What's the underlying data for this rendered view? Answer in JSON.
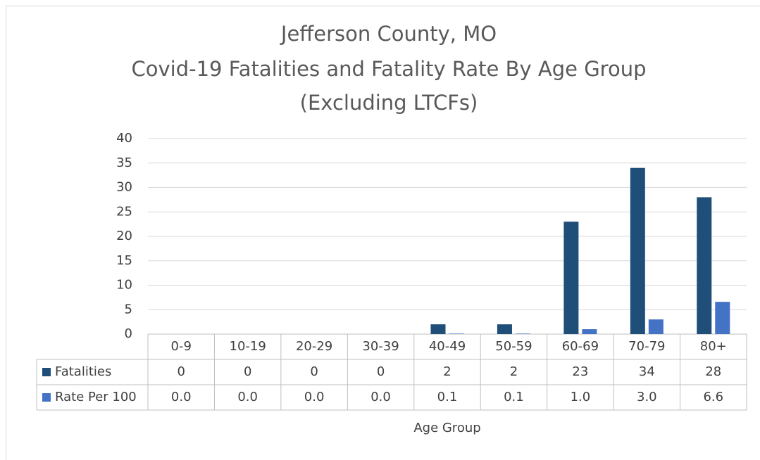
{
  "chart_data": {
    "type": "bar",
    "title": [
      "Jefferson County, MO",
      "Covid-19 Fatalities and Fatality Rate By Age Group",
      "(Excluding LTCFs)"
    ],
    "xlabel": "Age Group",
    "categories": [
      "0-9",
      "10-19",
      "20-29",
      "30-39",
      "40-49",
      "50-59",
      "60-69",
      "70-79",
      "80+"
    ],
    "series": [
      {
        "name": "Fatalities",
        "color": "#1f4e79",
        "values": [
          0,
          0,
          0,
          0,
          2,
          2,
          23,
          34,
          28
        ]
      },
      {
        "name": "Rate Per 100",
        "color": "#4472c4",
        "values": [
          0,
          0,
          0,
          0,
          0.1,
          0.1,
          1,
          3,
          6.6
        ],
        "value_labels": [
          "0.0",
          "0.0",
          "0.0",
          "0.0",
          "0.1",
          "0.1",
          "1.0",
          "3.0",
          "6.6"
        ]
      }
    ],
    "ylim": [
      0,
      40
    ],
    "yticks": [
      0,
      5,
      10,
      15,
      20,
      25,
      30,
      35,
      40
    ],
    "grid": true
  }
}
